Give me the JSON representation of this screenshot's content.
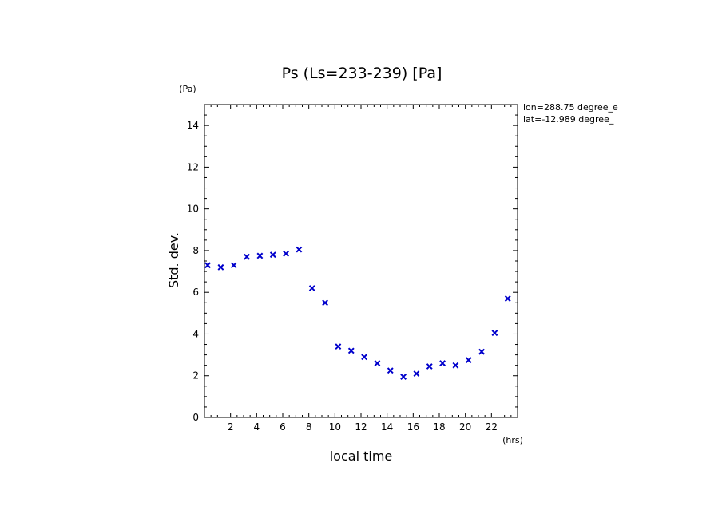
{
  "chart_data": {
    "type": "scatter",
    "title": "Ps (Ls=233-239) [Pa]",
    "xlabel": "local time",
    "ylabel": "Std. dev.",
    "x_unit": "(hrs)",
    "y_unit": "(Pa)",
    "xlim": [
      0,
      24
    ],
    "ylim": [
      0,
      15
    ],
    "x_major_ticks": [
      2,
      4,
      6,
      8,
      10,
      12,
      14,
      16,
      18,
      20,
      22
    ],
    "x_minor_step": 0.5,
    "y_major_ticks": [
      0,
      2,
      4,
      6,
      8,
      10,
      12,
      14
    ],
    "y_minor_step": 0.5,
    "grid": false,
    "marker": "x",
    "marker_color": "#0000cc",
    "info": [
      "lon=288.75 degree_e",
      "lat=-12.989 degree_"
    ],
    "series": [
      {
        "x": [
          0.25,
          1.25,
          2.25,
          3.25,
          4.25,
          5.25,
          6.25,
          7.25,
          8.25,
          9.25,
          10.25,
          11.25,
          12.25,
          13.25,
          14.25,
          15.25,
          16.25,
          17.25,
          18.25,
          19.25,
          20.25,
          21.25,
          22.25,
          23.25
        ],
        "y": [
          7.3,
          7.2,
          7.3,
          7.7,
          7.75,
          7.8,
          7.85,
          8.05,
          6.2,
          5.5,
          3.4,
          3.2,
          2.9,
          2.6,
          2.25,
          1.95,
          2.1,
          2.45,
          2.6,
          2.5,
          2.75,
          3.15,
          4.05,
          5.7
        ]
      }
    ]
  }
}
